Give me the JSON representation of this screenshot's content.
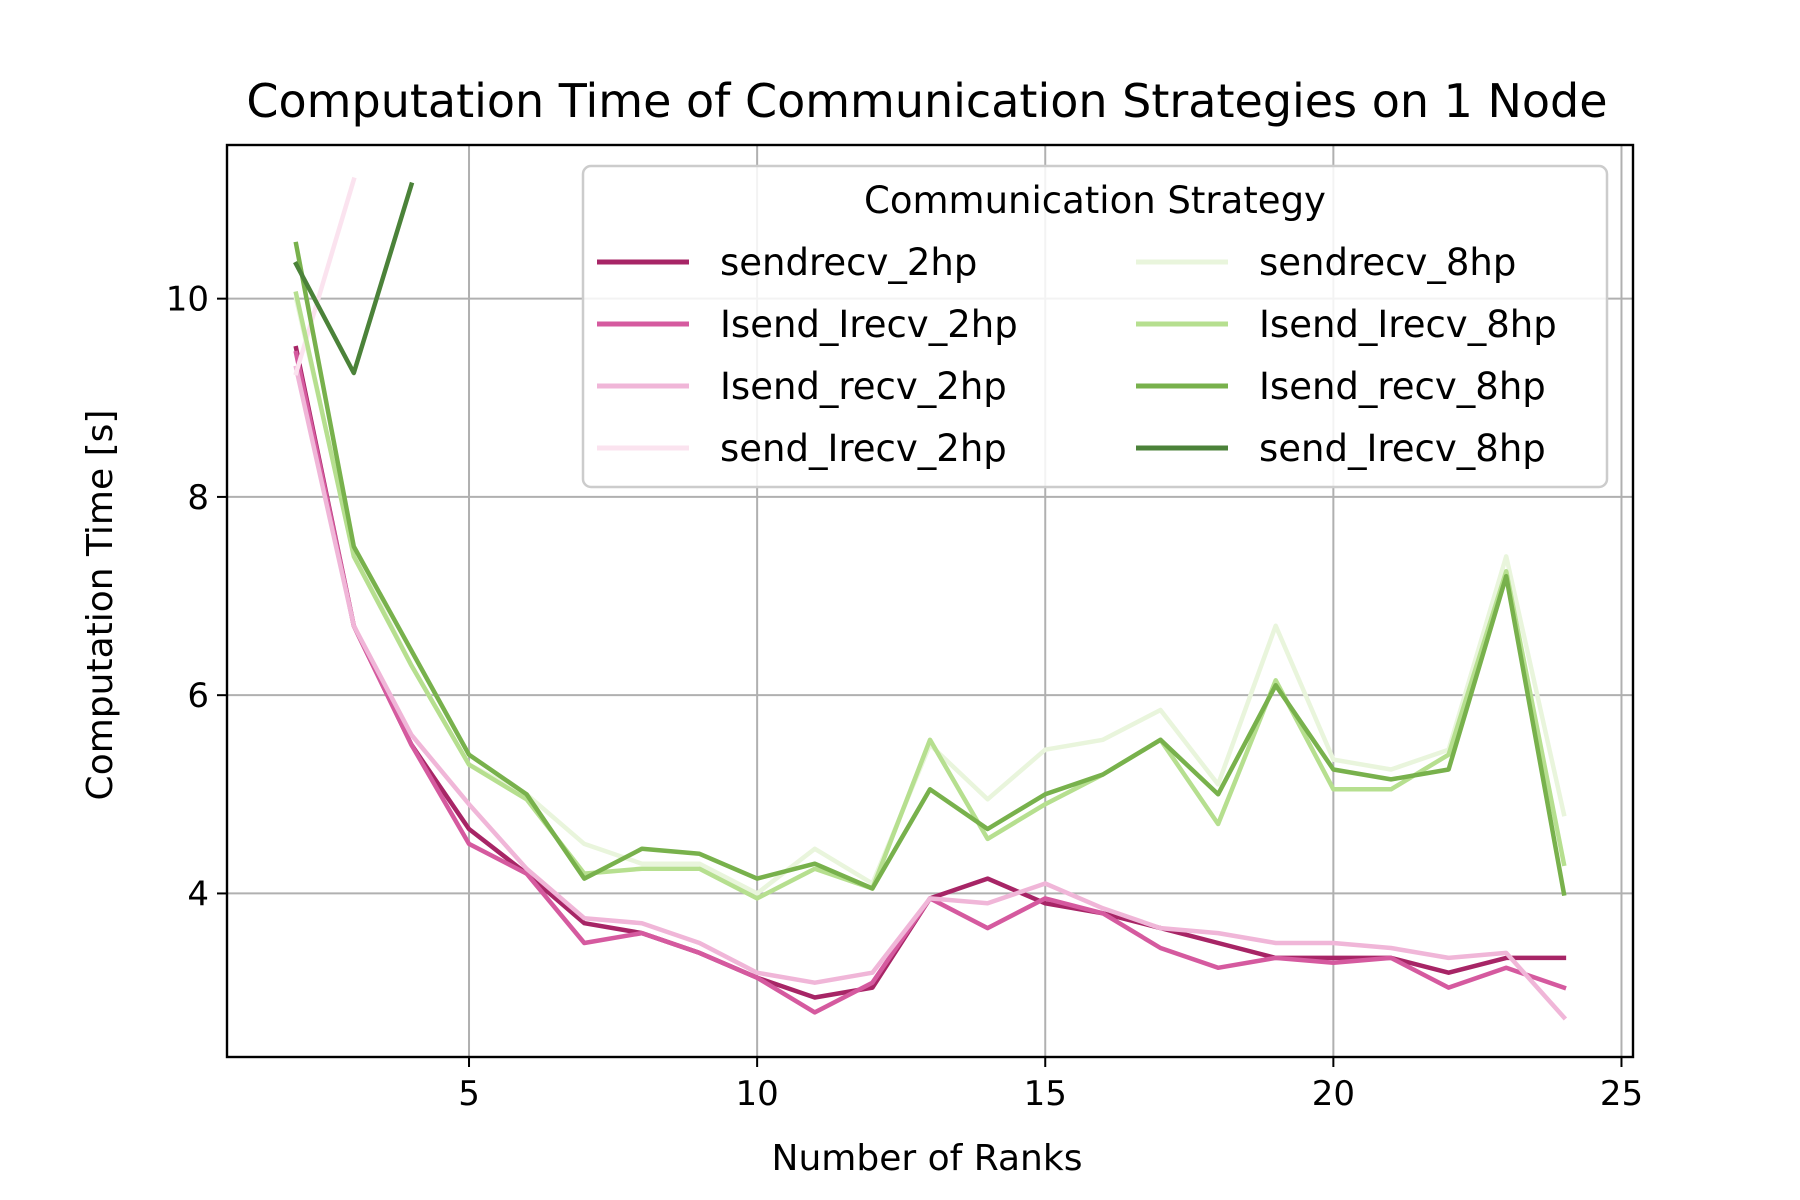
{
  "chart_data": {
    "type": "line",
    "title": "Computation Time of Communication Strategies on 1 Node",
    "xlabel": "Number of Ranks",
    "ylabel": "Computation Time [s]",
    "xlim": [
      0.8,
      25.2
    ],
    "ylim": [
      2.35,
      11.55
    ],
    "xticks": [
      5,
      10,
      15,
      20,
      25
    ],
    "yticks": [
      4,
      6,
      8,
      10
    ],
    "grid": true,
    "legend": {
      "title": "Communication Strategy",
      "placement": "upper right",
      "columns": 2
    },
    "series": [
      {
        "name": "sendrecv_2hp",
        "color": "#a72566",
        "x": [
          2,
          3,
          4,
          5,
          6,
          7,
          8,
          9,
          10,
          11,
          12,
          13,
          14,
          15,
          16,
          17,
          18,
          19,
          20,
          21,
          22,
          23,
          24
        ],
        "y": [
          9.5,
          6.7,
          5.5,
          4.65,
          4.2,
          3.7,
          3.6,
          3.4,
          3.15,
          2.95,
          3.05,
          3.95,
          4.15,
          3.9,
          3.8,
          3.65,
          3.5,
          3.35,
          3.35,
          3.35,
          3.2,
          3.35,
          3.35
        ]
      },
      {
        "name": "Isend_Irecv_2hp",
        "color": "#d55a9f",
        "x": [
          2,
          3,
          4,
          5,
          6,
          7,
          8,
          9,
          10,
          11,
          12,
          13,
          14,
          15,
          16,
          17,
          18,
          19,
          20,
          21,
          22,
          23,
          24
        ],
        "y": [
          9.45,
          6.7,
          5.5,
          4.5,
          4.2,
          3.5,
          3.6,
          3.4,
          3.15,
          2.8,
          3.1,
          3.95,
          3.65,
          3.95,
          3.8,
          3.45,
          3.25,
          3.35,
          3.3,
          3.35,
          3.05,
          3.25,
          3.05
        ]
      },
      {
        "name": "Isend_recv_2hp",
        "color": "#f0b6d8",
        "x": [
          2,
          3,
          4,
          5,
          6,
          7,
          8,
          9,
          10,
          11,
          12,
          13,
          14,
          15,
          16,
          17,
          18,
          19,
          20,
          21,
          22,
          23,
          24
        ],
        "y": [
          9.3,
          6.7,
          5.6,
          4.9,
          4.25,
          3.75,
          3.7,
          3.5,
          3.2,
          3.1,
          3.2,
          3.95,
          3.9,
          4.1,
          3.85,
          3.65,
          3.6,
          3.5,
          3.5,
          3.45,
          3.35,
          3.4,
          2.75
        ]
      },
      {
        "name": "send_Irecv_2hp",
        "color": "#fbe3ef",
        "x": [
          2,
          3
        ],
        "y": [
          9.25,
          11.2
        ]
      },
      {
        "name": "sendrecv_8hp",
        "color": "#e9f5dc",
        "x": [
          2,
          3,
          4,
          5,
          6,
          7,
          8,
          9,
          10,
          11,
          12,
          13,
          14,
          15,
          16,
          17,
          18,
          19,
          20,
          21,
          22,
          23,
          24
        ],
        "y": [
          10.0,
          7.45,
          6.3,
          5.3,
          5.0,
          4.5,
          4.3,
          4.3,
          4.0,
          4.45,
          4.1,
          5.5,
          4.95,
          5.45,
          5.55,
          5.85,
          5.1,
          6.7,
          5.35,
          5.25,
          5.45,
          7.4,
          4.8
        ]
      },
      {
        "name": "Isend_Irecv_8hp",
        "color": "#b6df8f",
        "x": [
          2,
          3,
          4,
          5,
          6,
          7,
          8,
          9,
          10,
          11,
          12,
          13,
          14,
          15,
          16,
          17,
          18,
          19,
          20,
          21,
          22,
          23,
          24
        ],
        "y": [
          10.05,
          7.4,
          6.3,
          5.3,
          4.95,
          4.2,
          4.25,
          4.25,
          3.95,
          4.25,
          4.05,
          5.55,
          4.55,
          4.9,
          5.2,
          5.55,
          4.7,
          6.15,
          5.05,
          5.05,
          5.4,
          7.25,
          4.3
        ]
      },
      {
        "name": "Isend_recv_8hp",
        "color": "#78b14c",
        "x": [
          2,
          3,
          4,
          5,
          6,
          7,
          8,
          9,
          10,
          11,
          12,
          13,
          14,
          15,
          16,
          17,
          18,
          19,
          20,
          21,
          22,
          23,
          24
        ],
        "y": [
          10.55,
          7.5,
          6.45,
          5.4,
          5.0,
          4.15,
          4.45,
          4.4,
          4.15,
          4.3,
          4.05,
          5.05,
          4.65,
          5.0,
          5.2,
          5.55,
          5.0,
          6.1,
          5.25,
          5.15,
          5.25,
          7.2,
          4.0
        ]
      },
      {
        "name": "send_Irecv_8hp",
        "color": "#4b8239",
        "x": [
          2,
          3,
          4
        ],
        "y": [
          10.35,
          9.25,
          11.15
        ]
      }
    ]
  }
}
